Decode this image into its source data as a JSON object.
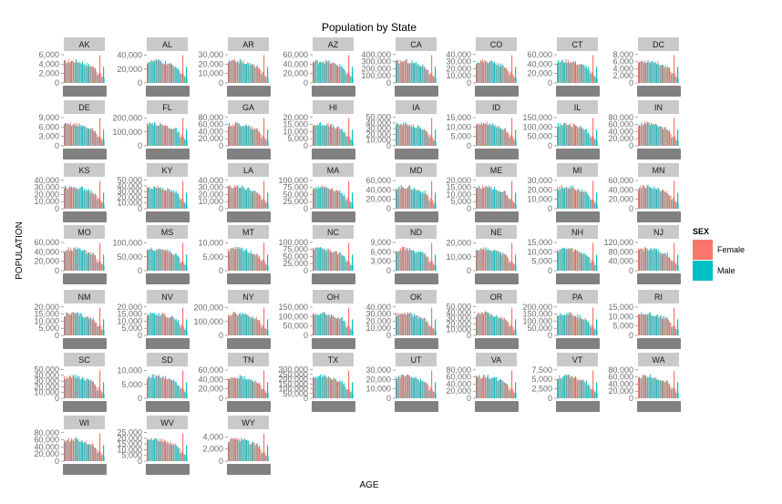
{
  "chart_data": {
    "type": "bar",
    "title": "Population by State",
    "xlabel": "AGE",
    "ylabel": "POPULATION",
    "legend": {
      "title": "SEX",
      "position": "right",
      "entries": [
        {
          "name": "Female",
          "color": "#F8766D"
        },
        {
          "name": "Male",
          "color": "#00BFC4"
        }
      ]
    },
    "grid": false,
    "colors": {
      "female": "#F8766D",
      "male": "#00BFC4",
      "strip": "#C9C9C9",
      "tick": "#6B6B6B"
    },
    "facets": [
      {
        "state": "AK",
        "ticks": [
          "6,000",
          "4,000",
          "2,000",
          "0"
        ],
        "ylim": [
          0,
          6200
        ]
      },
      {
        "state": "AL",
        "ticks": [
          "40,000",
          "20,000",
          "0"
        ],
        "ylim": [
          0,
          42000
        ]
      },
      {
        "state": "AR",
        "ticks": [
          "30,000",
          "20,000",
          "10,000",
          "0"
        ],
        "ylim": [
          0,
          31000
        ]
      },
      {
        "state": "AZ",
        "ticks": [
          "60,000",
          "40,000",
          "20,000",
          "0"
        ],
        "ylim": [
          0,
          62000
        ]
      },
      {
        "state": "CA",
        "ticks": [
          "400,000",
          "300,000",
          "200,000",
          "100,000",
          "0"
        ],
        "ylim": [
          0,
          410000
        ]
      },
      {
        "state": "CO",
        "ticks": [
          "40,000",
          "30,000",
          "20,000",
          "10,000",
          "0"
        ],
        "ylim": [
          0,
          41000
        ]
      },
      {
        "state": "CT",
        "ticks": [
          "60,000",
          "40,000",
          "20,000",
          "0"
        ],
        "ylim": [
          0,
          62000
        ]
      },
      {
        "state": "DC",
        "ticks": [
          "8,000",
          "6,000",
          "4,000",
          "2,000",
          "0"
        ],
        "ylim": [
          0,
          8200
        ]
      },
      {
        "state": "DE",
        "ticks": [
          "9,000",
          "6,000",
          "3,000",
          "0"
        ],
        "ylim": [
          0,
          9300
        ]
      },
      {
        "state": "FL",
        "ticks": [
          "200,000",
          "100,000",
          "0"
        ],
        "ylim": [
          0,
          210000
        ]
      },
      {
        "state": "GA",
        "ticks": [
          "80,000",
          "60,000",
          "40,000",
          "20,000",
          "0"
        ],
        "ylim": [
          0,
          82000
        ]
      },
      {
        "state": "HI",
        "ticks": [
          "20,000",
          "15,000",
          "10,000",
          "5,000",
          "0"
        ],
        "ylim": [
          0,
          20500
        ]
      },
      {
        "state": "IA",
        "ticks": [
          "50,000",
          "40,000",
          "30,000",
          "20,000",
          "10,000",
          "0"
        ],
        "ylim": [
          0,
          51000
        ]
      },
      {
        "state": "ID",
        "ticks": [
          "15,000",
          "10,000",
          "5,000",
          "0"
        ],
        "ylim": [
          0,
          15500
        ]
      },
      {
        "state": "IL",
        "ticks": [
          "150,000",
          "100,000",
          "50,000",
          "0"
        ],
        "ylim": [
          0,
          155000
        ]
      },
      {
        "state": "IN",
        "ticks": [
          "80,000",
          "60,000",
          "40,000",
          "20,000",
          "0"
        ],
        "ylim": [
          0,
          82000
        ]
      },
      {
        "state": "KS",
        "ticks": [
          "40,000",
          "30,000",
          "20,000",
          "10,000",
          "0"
        ],
        "ylim": [
          0,
          41000
        ]
      },
      {
        "state": "KY",
        "ticks": [
          "50,000",
          "40,000",
          "30,000",
          "20,000",
          "10,000",
          "0"
        ],
        "ylim": [
          0,
          51000
        ]
      },
      {
        "state": "LA",
        "ticks": [
          "40,000",
          "30,000",
          "20,000",
          "10,000",
          "0"
        ],
        "ylim": [
          0,
          41000
        ]
      },
      {
        "state": "MA",
        "ticks": [
          "100,000",
          "75,000",
          "50,000",
          "25,000",
          "0"
        ],
        "ylim": [
          0,
          103000
        ]
      },
      {
        "state": "MD",
        "ticks": [
          "60,000",
          "40,000",
          "20,000",
          "0"
        ],
        "ylim": [
          0,
          62000
        ]
      },
      {
        "state": "ME",
        "ticks": [
          "20,000",
          "15,000",
          "10,000",
          "5,000",
          "0"
        ],
        "ylim": [
          0,
          20500
        ]
      },
      {
        "state": "MI",
        "ticks": [
          "30,000",
          "20,000",
          "10,000",
          "0"
        ],
        "ylim": [
          0,
          31000
        ]
      },
      {
        "state": "MN",
        "ticks": [
          "60,000",
          "40,000",
          "20,000",
          "0"
        ],
        "ylim": [
          0,
          62000
        ]
      },
      {
        "state": "MO",
        "ticks": [
          "60,000",
          "40,000",
          "20,000",
          "0"
        ],
        "ylim": [
          0,
          62000
        ]
      },
      {
        "state": "MS",
        "ticks": [
          "100,000",
          "50,000",
          "0"
        ],
        "ylim": [
          0,
          105000
        ]
      },
      {
        "state": "MT",
        "ticks": [
          "10,000",
          "5,000",
          "0"
        ],
        "ylim": [
          0,
          10500
        ]
      },
      {
        "state": "NC",
        "ticks": [
          "100,000",
          "75,000",
          "50,000",
          "25,000",
          "0"
        ],
        "ylim": [
          0,
          103000
        ]
      },
      {
        "state": "ND",
        "ticks": [
          "9,000",
          "6,000",
          "3,000",
          "0"
        ],
        "ylim": [
          0,
          9300
        ]
      },
      {
        "state": "NE",
        "ticks": [
          "20,000",
          "10,000",
          "0"
        ],
        "ylim": [
          0,
          21000
        ]
      },
      {
        "state": "NH",
        "ticks": [
          "15,000",
          "10,000",
          "5,000",
          "0"
        ],
        "ylim": [
          0,
          15500
        ]
      },
      {
        "state": "NJ",
        "ticks": [
          "120,000",
          "80,000",
          "40,000",
          "0"
        ],
        "ylim": [
          0,
          124000
        ]
      },
      {
        "state": "NM",
        "ticks": [
          "20,000",
          "15,000",
          "10,000",
          "5,000",
          "0"
        ],
        "ylim": [
          0,
          20500
        ]
      },
      {
        "state": "NV",
        "ticks": [
          "20,000",
          "15,000",
          "10,000",
          "5,000",
          "0"
        ],
        "ylim": [
          0,
          20500
        ]
      },
      {
        "state": "NY",
        "ticks": [
          "200,000",
          "100,000",
          "0"
        ],
        "ylim": [
          0,
          210000
        ]
      },
      {
        "state": "OH",
        "ticks": [
          "150,000",
          "100,000",
          "50,000",
          "0"
        ],
        "ylim": [
          0,
          155000
        ]
      },
      {
        "state": "OK",
        "ticks": [
          "40,000",
          "30,000",
          "20,000",
          "10,000",
          "0"
        ],
        "ylim": [
          0,
          41000
        ]
      },
      {
        "state": "OR",
        "ticks": [
          "50,000",
          "40,000",
          "30,000",
          "20,000",
          "10,000",
          "0"
        ],
        "ylim": [
          0,
          51000
        ]
      },
      {
        "state": "PA",
        "ticks": [
          "200,000",
          "150,000",
          "100,000",
          "50,000",
          "0"
        ],
        "ylim": [
          0,
          205000
        ]
      },
      {
        "state": "RI",
        "ticks": [
          "15,000",
          "10,000",
          "5,000",
          "0"
        ],
        "ylim": [
          0,
          15500
        ]
      },
      {
        "state": "SC",
        "ticks": [
          "50,000",
          "40,000",
          "30,000",
          "20,000",
          "10,000",
          "0"
        ],
        "ylim": [
          0,
          51000
        ]
      },
      {
        "state": "SD",
        "ticks": [
          "10,000",
          "5,000",
          "0"
        ],
        "ylim": [
          0,
          10500
        ]
      },
      {
        "state": "TN",
        "ticks": [
          "60,000",
          "40,000",
          "20,000",
          "0"
        ],
        "ylim": [
          0,
          62000
        ]
      },
      {
        "state": "TX",
        "ticks": [
          "300,000",
          "250,000",
          "200,000",
          "150,000",
          "100,000",
          "50,000",
          "0"
        ],
        "ylim": [
          0,
          305000
        ]
      },
      {
        "state": "UT",
        "ticks": [
          "30,000",
          "20,000",
          "10,000",
          "0"
        ],
        "ylim": [
          0,
          31000
        ]
      },
      {
        "state": "VA",
        "ticks": [
          "80,000",
          "60,000",
          "40,000",
          "20,000",
          "0"
        ],
        "ylim": [
          0,
          82000
        ]
      },
      {
        "state": "VT",
        "ticks": [
          "7,500",
          "5,000",
          "2,500",
          "0"
        ],
        "ylim": [
          0,
          7700
        ]
      },
      {
        "state": "WA",
        "ticks": [
          "80,000",
          "60,000",
          "40,000",
          "20,000",
          "0"
        ],
        "ylim": [
          0,
          82000
        ]
      },
      {
        "state": "WI",
        "ticks": [
          "80,000",
          "60,000",
          "40,000",
          "20,000",
          "0"
        ],
        "ylim": [
          0,
          82000
        ]
      },
      {
        "state": "WV",
        "ticks": [
          "25,000",
          "20,000",
          "15,000",
          "10,000",
          "5,000",
          "0"
        ],
        "ylim": [
          0,
          25500
        ]
      },
      {
        "state": "WY",
        "ticks": [
          "4,000",
          "2,000",
          "0"
        ],
        "ylim": [
          0,
          4800
        ]
      }
    ]
  }
}
